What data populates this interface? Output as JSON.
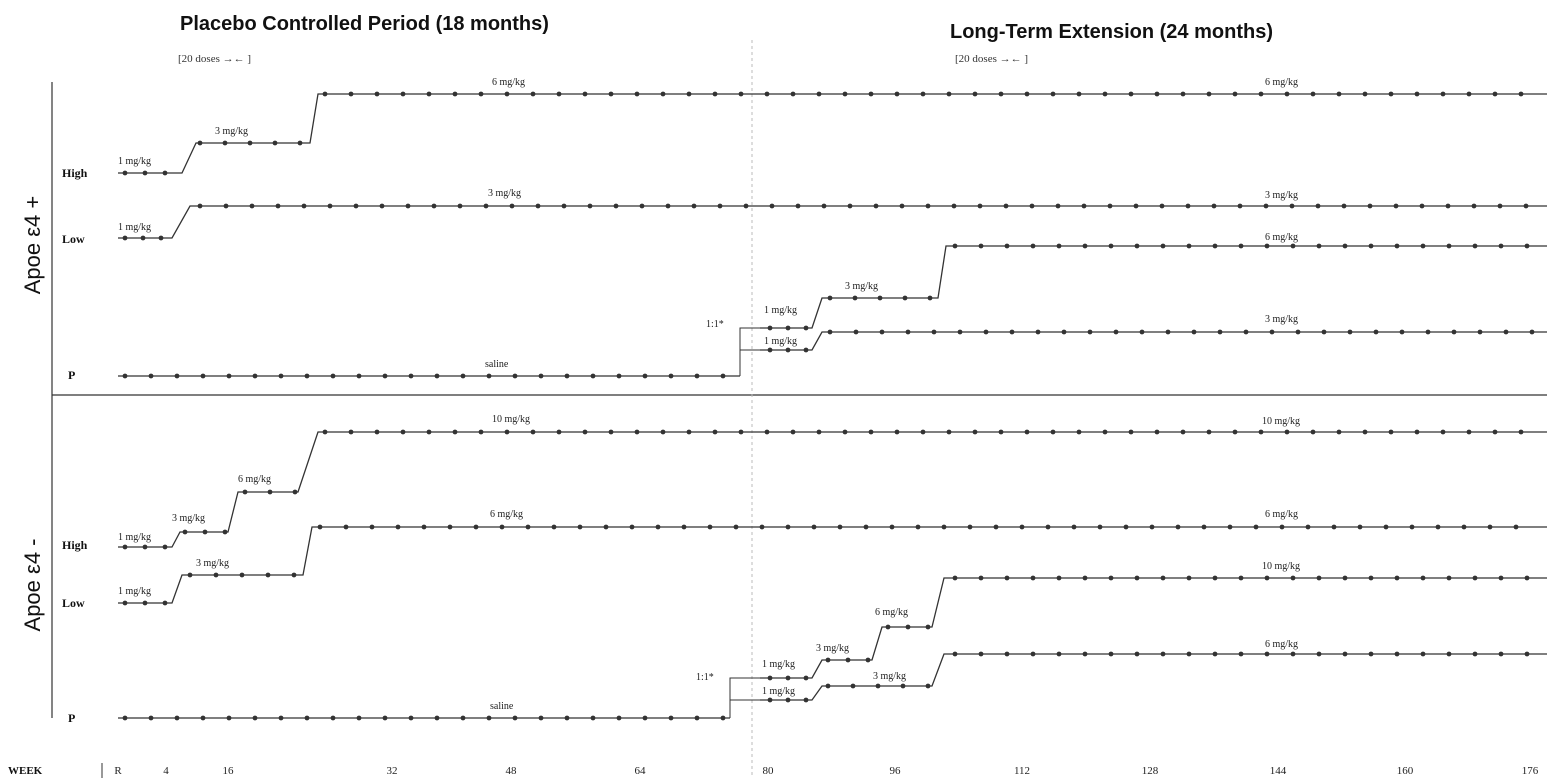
{
  "headers": {
    "left_title": "Placebo Controlled Period  (18 months)",
    "left_sub": "[20 doses →← ]",
    "right_title": "Long-Term Extension  (24 months)",
    "right_sub": "[20 doses →← ]"
  },
  "week_axis": {
    "label": "WEEK",
    "ticks": [
      "R",
      "4",
      "16",
      "32",
      "48",
      "64",
      "80",
      "96",
      "112",
      "128",
      "144",
      "160",
      "176"
    ]
  },
  "panels": [
    {
      "genotype": "Apoe ε4 +",
      "arms": [
        {
          "label": "High",
          "doses_pc": [
            "1 mg/kg",
            "3 mg/kg",
            "6 mg/kg"
          ],
          "dose_lte": "6 mg/kg"
        },
        {
          "label": "Low",
          "doses_pc": [
            "1 mg/kg",
            "3 mg/kg"
          ],
          "dose_lte": "3 mg/kg"
        },
        {
          "label": "P",
          "placebo": "saline",
          "ratio": "1:1*",
          "lte_upper": [
            "1 mg/kg",
            "3 mg/kg",
            "6 mg/kg"
          ],
          "lte_lower": [
            "1 mg/kg",
            "3 mg/kg"
          ]
        }
      ]
    },
    {
      "genotype": "Apoe ε4 -",
      "arms": [
        {
          "label": "High",
          "doses_pc": [
            "1 mg/kg",
            "3 mg/kg",
            "6 mg/kg",
            "10 mg/kg"
          ],
          "dose_lte": "10 mg/kg"
        },
        {
          "label": "Low",
          "doses_pc": [
            "1 mg/kg",
            "3 mg/kg",
            "6 mg/kg"
          ],
          "dose_lte": "6 mg/kg"
        },
        {
          "label": "P",
          "placebo": "saline",
          "ratio": "1:1*",
          "lte_upper": [
            "1 mg/kg",
            "3 mg/kg",
            "6 mg/kg",
            "10 mg/kg"
          ],
          "lte_lower": [
            "1 mg/kg",
            "3 mg/kg",
            "6 mg/kg"
          ]
        }
      ]
    }
  ]
}
